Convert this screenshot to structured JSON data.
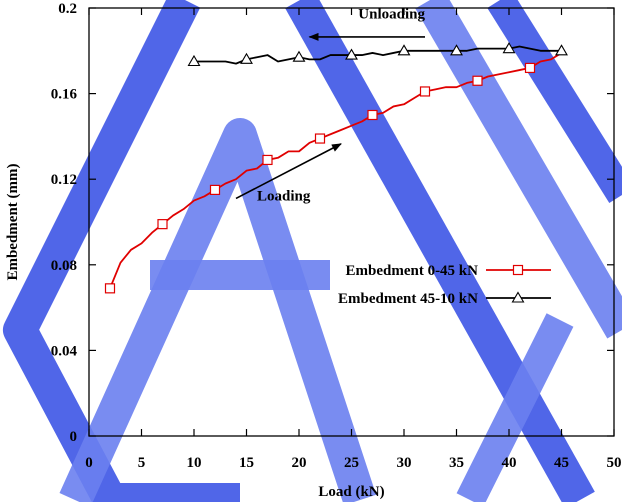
{
  "chart_data": {
    "type": "line",
    "xlabel": "Load (kN)",
    "ylabel": "Embedment (mm)",
    "xlim": [
      0,
      50
    ],
    "ylim": [
      0,
      0.2
    ],
    "xticks": [
      0,
      5,
      10,
      15,
      20,
      25,
      30,
      35,
      40,
      45,
      50
    ],
    "yticks": [
      0,
      0.04,
      0.08,
      0.12,
      0.16,
      0.2
    ],
    "xtick_labels": [
      "0",
      "5",
      "10",
      "15",
      "20",
      "25",
      "30",
      "35",
      "40",
      "45",
      "50"
    ],
    "ytick_labels": [
      "0",
      "0.04",
      "0.08",
      "0.12",
      "0.16",
      "0.2"
    ],
    "grid": false,
    "legend_position": "lower-right",
    "watermark_colors": [
      "#3d55e6",
      "#6a7ff0"
    ],
    "series": [
      {
        "name": "Embedment 0-45 kN",
        "color": "#e00000",
        "marker": "square",
        "x": [
          2,
          3,
          4,
          5,
          6,
          7,
          8,
          9,
          10,
          11,
          12,
          13,
          14,
          15,
          16,
          17,
          18,
          19,
          20,
          21,
          22,
          23,
          24,
          25,
          26,
          27,
          28,
          29,
          30,
          31,
          32,
          33,
          34,
          35,
          36,
          37,
          38,
          39,
          40,
          41,
          42,
          43,
          44,
          45
        ],
        "y": [
          0.069,
          0.081,
          0.087,
          0.09,
          0.095,
          0.099,
          0.103,
          0.106,
          0.11,
          0.112,
          0.115,
          0.118,
          0.12,
          0.124,
          0.125,
          0.129,
          0.13,
          0.133,
          0.133,
          0.137,
          0.139,
          0.141,
          0.143,
          0.145,
          0.147,
          0.15,
          0.151,
          0.154,
          0.155,
          0.158,
          0.161,
          0.162,
          0.163,
          0.163,
          0.165,
          0.166,
          0.168,
          0.169,
          0.17,
          0.171,
          0.172,
          0.175,
          0.176,
          0.179
        ],
        "marker_x": [
          2,
          7,
          12,
          17,
          22,
          27,
          32,
          37,
          42
        ],
        "marker_y": [
          0.069,
          0.099,
          0.115,
          0.129,
          0.139,
          0.15,
          0.161,
          0.166,
          0.172
        ]
      },
      {
        "name": "Embedment 45-10 kN",
        "color": "#000000",
        "marker": "triangle",
        "x": [
          10,
          11,
          12,
          13,
          14,
          15,
          16,
          17,
          18,
          19,
          20,
          21,
          22,
          23,
          24,
          25,
          26,
          27,
          28,
          29,
          30,
          31,
          32,
          33,
          34,
          35,
          36,
          37,
          38,
          39,
          40,
          41,
          42,
          43,
          44,
          45
        ],
        "y": [
          0.175,
          0.175,
          0.175,
          0.175,
          0.174,
          0.176,
          0.177,
          0.178,
          0.175,
          0.176,
          0.177,
          0.176,
          0.176,
          0.178,
          0.178,
          0.178,
          0.178,
          0.179,
          0.178,
          0.179,
          0.18,
          0.18,
          0.18,
          0.18,
          0.18,
          0.18,
          0.18,
          0.181,
          0.181,
          0.181,
          0.181,
          0.182,
          0.181,
          0.18,
          0.18,
          0.18
        ],
        "marker_x": [
          10,
          15,
          20,
          25,
          30,
          35,
          40,
          45
        ],
        "marker_y": [
          0.175,
          0.176,
          0.177,
          0.178,
          0.18,
          0.18,
          0.181,
          0.18
        ]
      }
    ],
    "annotations": [
      {
        "text": "Unloading",
        "x_from": 32,
        "y_from": 0.1865,
        "x_to": 21,
        "y_to": 0.1865,
        "text_x": 32,
        "text_y": 0.195
      },
      {
        "text": "Loading",
        "x_from": 14,
        "y_from": 0.111,
        "x_to": 24,
        "y_to": 0.1365,
        "text_x": 16,
        "text_y": 0.11
      }
    ]
  }
}
